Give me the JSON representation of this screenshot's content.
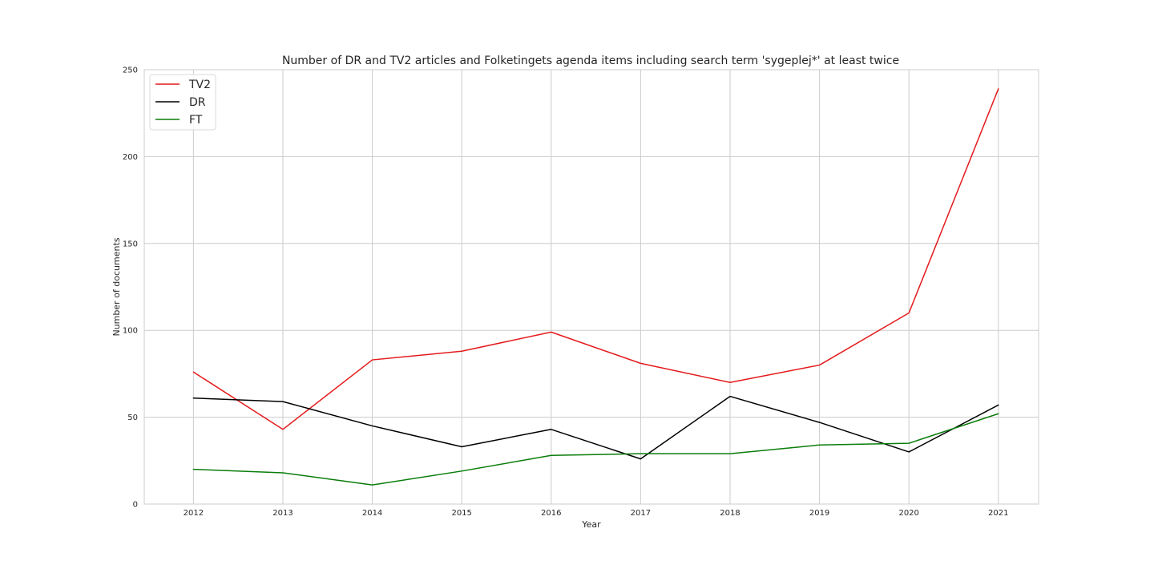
{
  "chart_data": {
    "type": "line",
    "title": "Number of DR and TV2 articles and Folketingets agenda items including search term 'sygeplej*' at least twice",
    "xlabel": "Year",
    "ylabel": "Number of documents",
    "x": [
      2012,
      2013,
      2014,
      2015,
      2016,
      2017,
      2018,
      2019,
      2020,
      2021
    ],
    "xlim": [
      2011.45,
      2021.45
    ],
    "ylim": [
      0,
      250
    ],
    "yticks": [
      0,
      50,
      100,
      150,
      200,
      250
    ],
    "grid": true,
    "legend_position": "top-left",
    "series": [
      {
        "name": "TV2",
        "color": "#e41a1c",
        "values": [
          76,
          43,
          83,
          88,
          99,
          81,
          70,
          80,
          110,
          239
        ]
      },
      {
        "name": "DR",
        "color": "#000000",
        "values": [
          61,
          59,
          45,
          33,
          43,
          26,
          62,
          47,
          30,
          57
        ]
      },
      {
        "name": "FT",
        "color": "#0a7d0a",
        "values": [
          20,
          18,
          11,
          19,
          28,
          29,
          29,
          34,
          35,
          52
        ]
      }
    ]
  }
}
